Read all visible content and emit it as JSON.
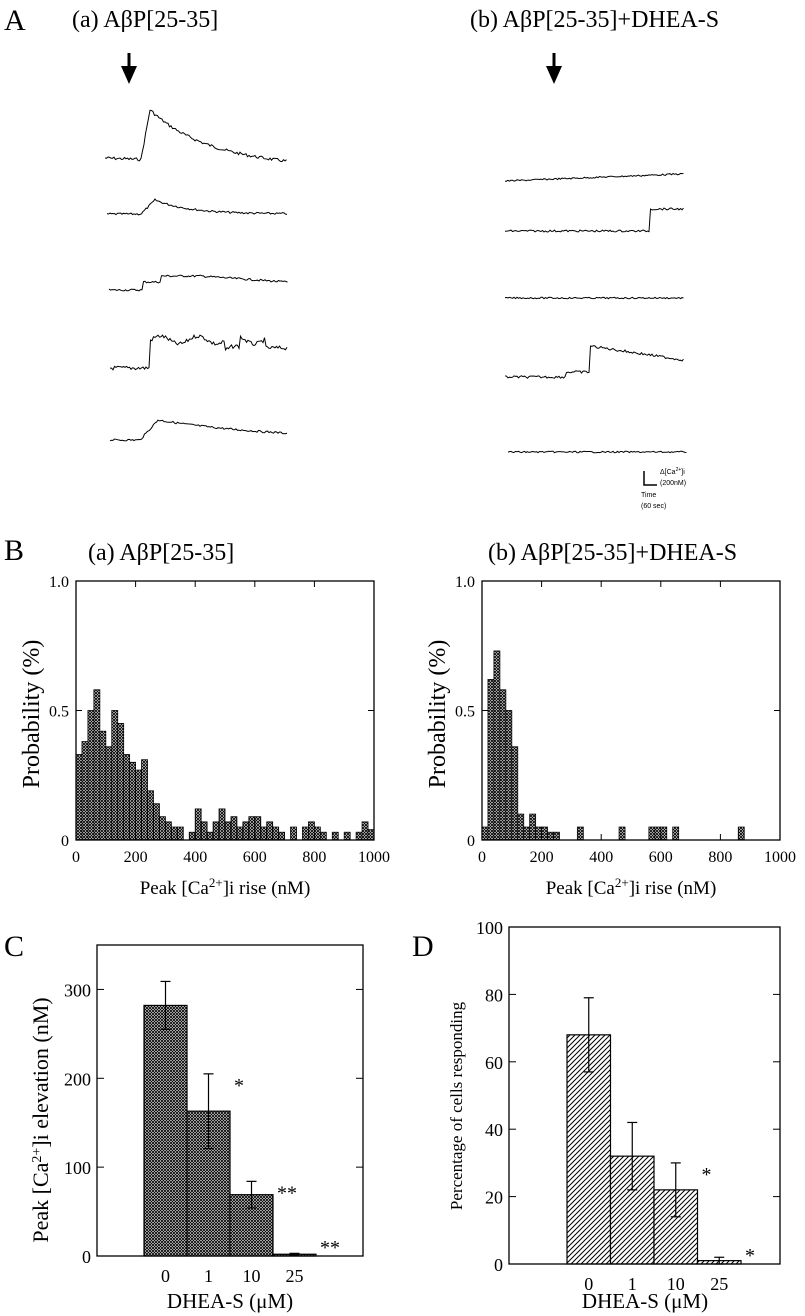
{
  "panels": {
    "A": {
      "letter": "A",
      "left_title": "(a) AβP[25-35]",
      "right_title": "(b) AβP[25-35]+DHEA-S",
      "scale_bar": {
        "y_label_prefix": "Δ[Ca",
        "y_label_sup": "2+",
        "y_label_suffix": "]i",
        "y_value": "(200nM)",
        "x_label": "Time",
        "x_value": "(60 sec)"
      }
    },
    "B": {
      "letter": "B"
    },
    "C": {
      "letter": "C"
    },
    "D": {
      "letter": "D"
    }
  },
  "colors": {
    "ink": "#000000",
    "bar_fill": "#8a8a8a",
    "background": "#ffffff"
  },
  "chart_data": [
    {
      "id": "Ba",
      "type": "bar",
      "title": "(a) AβP[25-35]",
      "xlabel_prefix": "Peak [Ca",
      "xlabel_sup": "2+",
      "xlabel_suffix": "]i rise (nM)",
      "ylabel": "Probability (%)",
      "xlim": [
        0,
        1000
      ],
      "ylim": [
        0,
        1.0
      ],
      "xticks": [
        0,
        200,
        400,
        600,
        800,
        1000
      ],
      "yticks": [
        {
          "v": 0,
          "label": "0"
        },
        {
          "v": 0.5,
          "label": "0.5"
        },
        {
          "v": 1.0,
          "label": "1.0"
        }
      ],
      "bin_width": 20,
      "bin_starts": [
        0,
        20,
        40,
        60,
        80,
        100,
        120,
        140,
        160,
        180,
        200,
        220,
        240,
        260,
        280,
        300,
        320,
        340,
        360,
        380,
        400,
        420,
        440,
        460,
        480,
        500,
        520,
        540,
        560,
        580,
        600,
        620,
        640,
        660,
        680,
        700,
        720,
        740,
        760,
        780,
        800,
        820,
        840,
        860,
        880,
        900,
        920,
        940,
        960,
        980
      ],
      "values": [
        0.33,
        0.38,
        0.5,
        0.58,
        0.42,
        0.36,
        0.5,
        0.45,
        0.33,
        0.3,
        0.27,
        0.31,
        0.19,
        0.14,
        0.09,
        0.07,
        0.05,
        0.05,
        0.0,
        0.03,
        0.12,
        0.07,
        0.03,
        0.07,
        0.12,
        0.07,
        0.09,
        0.05,
        0.07,
        0.09,
        0.09,
        0.05,
        0.07,
        0.05,
        0.03,
        0.0,
        0.05,
        0.0,
        0.05,
        0.07,
        0.05,
        0.03,
        0.0,
        0.03,
        0.0,
        0.03,
        0.0,
        0.03,
        0.07,
        0.04
      ]
    },
    {
      "id": "Bb",
      "type": "bar",
      "title": "(b) AβP[25-35]+DHEA-S",
      "xlabel_prefix": "Peak [Ca",
      "xlabel_sup": "2+",
      "xlabel_suffix": "]i rise (nM)",
      "ylabel": "Probability (%)",
      "xlim": [
        0,
        1000
      ],
      "ylim": [
        0,
        1.0
      ],
      "xticks": [
        0,
        200,
        400,
        600,
        800,
        1000
      ],
      "yticks": [
        {
          "v": 0,
          "label": "0"
        },
        {
          "v": 0.5,
          "label": "0.5"
        },
        {
          "v": 1.0,
          "label": "1.0"
        }
      ],
      "bin_width": 20,
      "bin_starts": [
        0,
        20,
        40,
        60,
        80,
        100,
        120,
        140,
        160,
        180,
        200,
        220,
        240,
        260,
        280,
        300,
        320,
        340,
        360,
        380,
        400,
        420,
        440,
        460,
        480,
        500,
        520,
        540,
        560,
        580,
        600,
        620,
        640,
        660,
        680,
        700,
        720,
        740,
        760,
        780,
        800,
        820,
        840,
        860,
        880,
        900,
        920,
        940,
        960,
        980
      ],
      "values": [
        0.05,
        0.62,
        0.73,
        0.58,
        0.5,
        0.36,
        0.1,
        0.05,
        0.1,
        0.05,
        0.05,
        0.03,
        0.03,
        0.0,
        0.0,
        0.0,
        0.0,
        0.0,
        0.0,
        0.0,
        0.0,
        0.0,
        0.0,
        0.0,
        0.0,
        0.0,
        0.0,
        0.0,
        0.0,
        0.0,
        0.0,
        0.0,
        0.0,
        0.0,
        0.0,
        0.0,
        0.0,
        0.0,
        0.0,
        0.0,
        0.0,
        0.0,
        0.0,
        0.0,
        0.0,
        0.0,
        0.0,
        0.0,
        0.0,
        0.0
      ],
      "extra_bars": [
        {
          "x": 320,
          "v": 0.05
        },
        {
          "x": 460,
          "v": 0.05
        },
        {
          "x": 560,
          "v": 0.05
        },
        {
          "x": 580,
          "v": 0.05
        },
        {
          "x": 600,
          "v": 0.05
        },
        {
          "x": 640,
          "v": 0.05
        },
        {
          "x": 860,
          "v": 0.05
        }
      ]
    },
    {
      "id": "C",
      "type": "bar",
      "xlabel": "DHEA-S (μM)",
      "ylabel_prefix": "Peak [Ca",
      "ylabel_sup": "2+",
      "ylabel_suffix": "]i elevation (nM)",
      "ylim": [
        0,
        350
      ],
      "yticks": [
        0,
        100,
        200,
        300
      ],
      "categories": [
        "0",
        "1",
        "10",
        "25"
      ],
      "values": [
        282,
        163,
        69,
        2
      ],
      "errors": [
        27,
        42,
        15,
        1
      ],
      "significance": [
        "",
        "*",
        "**",
        "**"
      ]
    },
    {
      "id": "D",
      "type": "bar",
      "xlabel": "DHEA-S (μM)",
      "ylabel": "Percentage of cells responding",
      "ylim": [
        0,
        100
      ],
      "yticks": [
        0,
        20,
        40,
        60,
        80,
        100
      ],
      "categories": [
        "0",
        "1",
        "10",
        "25"
      ],
      "values": [
        68,
        32,
        22,
        1
      ],
      "errors": [
        11,
        10,
        8,
        1
      ],
      "significance": [
        "",
        "",
        "*",
        "*"
      ]
    }
  ]
}
